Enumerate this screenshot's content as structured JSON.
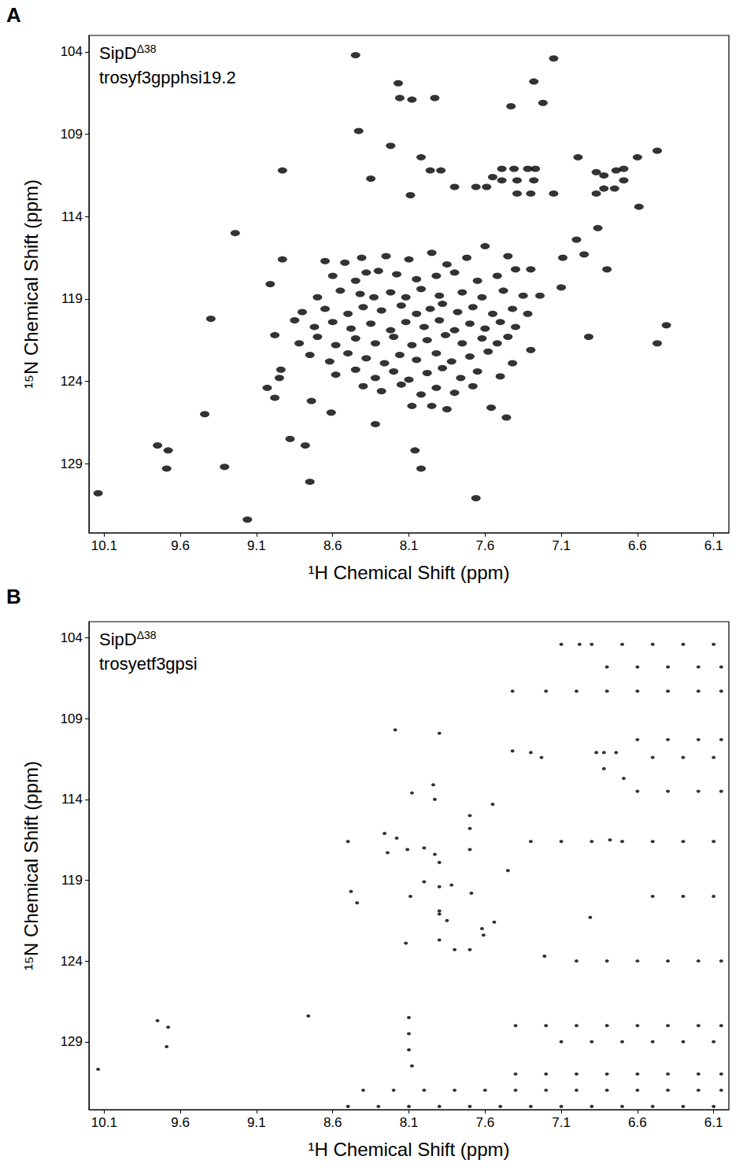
{
  "chart_data": [
    {
      "type": "scatter",
      "label": "A",
      "title": "SipDΔ38",
      "subtitle": "trosyf3gpphsi19.2",
      "xlabel": "¹H Chemical Shift (ppm)",
      "ylabel": "¹⁵N Chemical Shift (ppm)",
      "xlim": [
        10.2,
        6.0
      ],
      "xticks": [
        10.1,
        9.6,
        9.1,
        8.6,
        8.1,
        7.6,
        7.1,
        6.6,
        6.1
      ],
      "ylim": [
        103,
        133.2
      ],
      "yticks": [
        104,
        109,
        114,
        119,
        124,
        129
      ],
      "grid": false,
      "color": "#000000",
      "marker": "ellipse",
      "points": [
        [
          8.45,
          104.2
        ],
        [
          7.15,
          104.4
        ],
        [
          7.28,
          105.8
        ],
        [
          8.17,
          105.9
        ],
        [
          8.16,
          106.8
        ],
        [
          8.08,
          106.9
        ],
        [
          7.93,
          106.8
        ],
        [
          7.43,
          107.3
        ],
        [
          7.22,
          107.1
        ],
        [
          8.43,
          108.8
        ],
        [
          8.22,
          109.7
        ],
        [
          8.02,
          110.4
        ],
        [
          7.96,
          111.2
        ],
        [
          7.89,
          111.2
        ],
        [
          8.93,
          111.2
        ],
        [
          8.35,
          111.7
        ],
        [
          8.09,
          112.7
        ],
        [
          7.8,
          112.2
        ],
        [
          7.66,
          112.2
        ],
        [
          7.59,
          112.2
        ],
        [
          7.49,
          111.1
        ],
        [
          7.41,
          111.1
        ],
        [
          7.32,
          111.1
        ],
        [
          7.27,
          111.1
        ],
        [
          7.55,
          111.6
        ],
        [
          7.49,
          111.8
        ],
        [
          7.39,
          111.8
        ],
        [
          7.28,
          111.8
        ],
        [
          7.39,
          112.6
        ],
        [
          7.3,
          112.6
        ],
        [
          7.15,
          112.6
        ],
        [
          6.99,
          110.4
        ],
        [
          6.87,
          111.3
        ],
        [
          6.82,
          111.5
        ],
        [
          6.74,
          111.2
        ],
        [
          6.69,
          111.1
        ],
        [
          6.6,
          110.4
        ],
        [
          6.47,
          110.0
        ],
        [
          6.82,
          112.3
        ],
        [
          6.75,
          112.3
        ],
        [
          6.69,
          111.8
        ],
        [
          6.87,
          112.6
        ],
        [
          6.59,
          113.4
        ],
        [
          6.86,
          114.7
        ],
        [
          7.0,
          115.4
        ],
        [
          9.24,
          115.0
        ],
        [
          8.93,
          116.6
        ],
        [
          9.01,
          118.1
        ],
        [
          8.98,
          121.2
        ],
        [
          8.94,
          123.3
        ],
        [
          8.95,
          123.8
        ],
        [
          8.98,
          125.0
        ],
        [
          9.4,
          120.2
        ],
        [
          9.44,
          126.0
        ],
        [
          9.03,
          124.4
        ],
        [
          8.74,
          125.2
        ],
        [
          8.61,
          125.9
        ],
        [
          8.88,
          127.5
        ],
        [
          8.78,
          127.9
        ],
        [
          9.75,
          127.9
        ],
        [
          9.68,
          128.2
        ],
        [
          9.69,
          129.3
        ],
        [
          9.31,
          129.2
        ],
        [
          8.75,
          130.1
        ],
        [
          10.14,
          130.8
        ],
        [
          9.16,
          132.4
        ],
        [
          8.06,
          128.2
        ],
        [
          8.02,
          129.3
        ],
        [
          8.32,
          126.6
        ],
        [
          7.66,
          131.1
        ],
        [
          7.95,
          125.5
        ],
        [
          8.08,
          125.5
        ],
        [
          7.85,
          125.7
        ],
        [
          7.56,
          125.6
        ],
        [
          7.46,
          126.2
        ],
        [
          6.92,
          121.3
        ],
        [
          6.47,
          121.7
        ],
        [
          6.41,
          120.6
        ],
        [
          6.95,
          116.3
        ],
        [
          7.09,
          116.5
        ],
        [
          6.8,
          117.2
        ],
        [
          7.1,
          118.3
        ],
        [
          7.24,
          118.8
        ],
        [
          8.65,
          116.7
        ],
        [
          8.52,
          116.8
        ],
        [
          8.41,
          116.5
        ],
        [
          8.25,
          116.4
        ],
        [
          8.1,
          116.6
        ],
        [
          7.95,
          116.2
        ],
        [
          7.85,
          116.9
        ],
        [
          7.72,
          116.5
        ],
        [
          7.6,
          115.8
        ],
        [
          7.45,
          116.4
        ],
        [
          7.3,
          117.2
        ],
        [
          8.6,
          117.6
        ],
        [
          8.45,
          117.9
        ],
        [
          8.38,
          117.4
        ],
        [
          8.3,
          117.3
        ],
        [
          8.18,
          117.5
        ],
        [
          8.05,
          117.8
        ],
        [
          7.92,
          117.6
        ],
        [
          7.8,
          117.4
        ],
        [
          7.65,
          117.9
        ],
        [
          7.52,
          117.6
        ],
        [
          7.4,
          117.2
        ],
        [
          8.7,
          118.9
        ],
        [
          8.55,
          118.5
        ],
        [
          8.42,
          118.7
        ],
        [
          8.33,
          118.9
        ],
        [
          8.22,
          118.6
        ],
        [
          8.12,
          118.9
        ],
        [
          8.02,
          118.4
        ],
        [
          7.9,
          118.8
        ],
        [
          7.75,
          118.6
        ],
        [
          7.62,
          118.9
        ],
        [
          7.48,
          118.5
        ],
        [
          7.35,
          118.8
        ],
        [
          8.8,
          119.8
        ],
        [
          8.65,
          119.6
        ],
        [
          8.5,
          119.9
        ],
        [
          8.4,
          119.5
        ],
        [
          8.28,
          119.7
        ],
        [
          8.15,
          119.4
        ],
        [
          8.05,
          119.9
        ],
        [
          7.96,
          119.6
        ],
        [
          7.88,
          119.3
        ],
        [
          7.78,
          119.8
        ],
        [
          7.68,
          119.5
        ],
        [
          7.55,
          119.9
        ],
        [
          7.42,
          119.6
        ],
        [
          7.32,
          119.9
        ],
        [
          8.85,
          120.3
        ],
        [
          8.72,
          120.7
        ],
        [
          8.6,
          120.4
        ],
        [
          8.48,
          120.8
        ],
        [
          8.35,
          120.5
        ],
        [
          8.22,
          120.9
        ],
        [
          8.12,
          120.4
        ],
        [
          8.0,
          120.7
        ],
        [
          7.9,
          120.3
        ],
        [
          7.8,
          120.9
        ],
        [
          7.7,
          120.5
        ],
        [
          7.6,
          120.8
        ],
        [
          7.5,
          120.4
        ],
        [
          7.4,
          120.7
        ],
        [
          8.82,
          121.7
        ],
        [
          8.7,
          121.3
        ],
        [
          8.58,
          121.8
        ],
        [
          8.45,
          121.4
        ],
        [
          8.32,
          121.7
        ],
        [
          8.2,
          121.3
        ],
        [
          8.08,
          121.8
        ],
        [
          7.98,
          121.5
        ],
        [
          7.86,
          121.2
        ],
        [
          7.75,
          121.7
        ],
        [
          7.62,
          121.4
        ],
        [
          7.52,
          121.7
        ],
        [
          7.45,
          121.3
        ],
        [
          8.75,
          122.4
        ],
        [
          8.62,
          122.8
        ],
        [
          8.5,
          122.3
        ],
        [
          8.38,
          122.6
        ],
        [
          8.26,
          122.9
        ],
        [
          8.16,
          122.4
        ],
        [
          8.05,
          122.7
        ],
        [
          7.92,
          122.3
        ],
        [
          7.82,
          122.8
        ],
        [
          7.7,
          122.5
        ],
        [
          7.58,
          122.2
        ],
        [
          7.42,
          122.9
        ],
        [
          7.3,
          122.1
        ],
        [
          8.58,
          123.6
        ],
        [
          8.45,
          123.3
        ],
        [
          8.32,
          123.8
        ],
        [
          8.2,
          123.4
        ],
        [
          8.1,
          123.9
        ],
        [
          7.98,
          123.5
        ],
        [
          7.88,
          123.2
        ],
        [
          7.76,
          123.8
        ],
        [
          7.65,
          123.4
        ],
        [
          7.5,
          123.7
        ],
        [
          8.4,
          124.3
        ],
        [
          8.28,
          124.6
        ],
        [
          8.15,
          124.2
        ],
        [
          8.02,
          124.8
        ],
        [
          7.92,
          124.4
        ],
        [
          7.8,
          124.7
        ],
        [
          7.68,
          124.3
        ]
      ]
    },
    {
      "type": "scatter",
      "label": "B",
      "title": "SipDΔ38",
      "subtitle": "trosyetf3gpsi",
      "xlabel": "¹H Chemical Shift (ppm)",
      "ylabel": "¹⁵N Chemical Shift (ppm)",
      "xlim": [
        10.2,
        6.0
      ],
      "xticks": [
        10.1,
        9.6,
        9.1,
        8.6,
        8.1,
        7.6,
        7.1,
        6.6,
        6.1
      ],
      "ylim": [
        103,
        133.2
      ],
      "yticks": [
        104,
        109,
        114,
        119,
        124,
        129
      ],
      "grid": false,
      "color": "#000000",
      "marker": "dot",
      "points": [
        [
          6.98,
          104.4
        ],
        [
          7.42,
          107.3
        ],
        [
          8.19,
          109.7
        ],
        [
          7.9,
          109.9
        ],
        [
          7.42,
          111.0
        ],
        [
          7.3,
          111.1
        ],
        [
          7.23,
          111.4
        ],
        [
          6.87,
          111.1
        ],
        [
          6.82,
          111.1
        ],
        [
          6.74,
          111.1
        ],
        [
          6.82,
          112.1
        ],
        [
          6.69,
          112.7
        ],
        [
          7.7,
          115.0
        ],
        [
          7.7,
          115.8
        ],
        [
          7.55,
          114.3
        ],
        [
          8.5,
          116.6
        ],
        [
          8.24,
          117.3
        ],
        [
          8.11,
          117.1
        ],
        [
          8.0,
          117.0
        ],
        [
          7.93,
          117.4
        ],
        [
          7.9,
          117.9
        ],
        [
          8.26,
          116.1
        ],
        [
          8.18,
          116.4
        ],
        [
          7.7,
          117.1
        ],
        [
          7.45,
          118.4
        ],
        [
          7.69,
          119.8
        ],
        [
          8.0,
          119.1
        ],
        [
          7.9,
          119.4
        ],
        [
          7.82,
          119.3
        ],
        [
          8.09,
          120.0
        ],
        [
          7.9,
          120.9
        ],
        [
          7.9,
          121.1
        ],
        [
          7.85,
          121.5
        ],
        [
          7.62,
          122.0
        ],
        [
          7.54,
          121.6
        ],
        [
          7.61,
          122.4
        ],
        [
          7.9,
          122.7
        ],
        [
          7.8,
          123.3
        ],
        [
          7.7,
          123.3
        ],
        [
          8.12,
          122.9
        ],
        [
          7.21,
          123.7
        ],
        [
          6.91,
          121.3
        ],
        [
          6.78,
          116.5
        ],
        [
          9.75,
          127.7
        ],
        [
          9.68,
          128.1
        ],
        [
          9.69,
          129.3
        ],
        [
          8.76,
          127.4
        ],
        [
          10.14,
          130.7
        ],
        [
          8.48,
          119.7
        ],
        [
          8.44,
          120.4
        ],
        [
          8.08,
          113.6
        ],
        [
          7.94,
          113.1
        ],
        [
          7.93,
          114.0
        ],
        [
          7.1,
          104.4
        ],
        [
          6.9,
          104.4
        ],
        [
          6.7,
          104.4
        ],
        [
          6.5,
          104.4
        ],
        [
          6.3,
          104.4
        ],
        [
          6.1,
          104.4
        ],
        [
          6.8,
          105.8
        ],
        [
          6.6,
          105.8
        ],
        [
          6.4,
          105.8
        ],
        [
          6.2,
          105.8
        ],
        [
          6.05,
          105.8
        ],
        [
          7.2,
          107.3
        ],
        [
          7.0,
          107.3
        ],
        [
          6.8,
          107.3
        ],
        [
          6.6,
          107.3
        ],
        [
          6.4,
          107.3
        ],
        [
          6.2,
          107.3
        ],
        [
          6.05,
          107.3
        ],
        [
          6.6,
          110.3
        ],
        [
          6.4,
          110.3
        ],
        [
          6.2,
          110.3
        ],
        [
          6.05,
          110.3
        ],
        [
          6.5,
          111.4
        ],
        [
          6.3,
          111.4
        ],
        [
          6.1,
          111.4
        ],
        [
          6.6,
          113.5
        ],
        [
          6.4,
          113.5
        ],
        [
          6.2,
          113.5
        ],
        [
          6.05,
          113.5
        ],
        [
          7.3,
          116.6
        ],
        [
          7.1,
          116.6
        ],
        [
          6.9,
          116.6
        ],
        [
          6.7,
          116.6
        ],
        [
          6.5,
          116.6
        ],
        [
          6.3,
          116.6
        ],
        [
          6.1,
          116.6
        ],
        [
          6.5,
          120.0
        ],
        [
          6.3,
          120.0
        ],
        [
          6.1,
          120.0
        ],
        [
          7.0,
          124.0
        ],
        [
          6.8,
          124.0
        ],
        [
          6.6,
          124.0
        ],
        [
          6.4,
          124.0
        ],
        [
          6.2,
          124.0
        ],
        [
          6.05,
          124.0
        ],
        [
          7.4,
          128.0
        ],
        [
          7.2,
          128.0
        ],
        [
          7.0,
          128.0
        ],
        [
          6.8,
          128.0
        ],
        [
          6.6,
          128.0
        ],
        [
          6.4,
          128.0
        ],
        [
          6.2,
          128.0
        ],
        [
          6.05,
          128.0
        ],
        [
          7.1,
          129.0
        ],
        [
          6.9,
          129.0
        ],
        [
          6.7,
          129.0
        ],
        [
          6.5,
          129.0
        ],
        [
          6.3,
          129.0
        ],
        [
          6.1,
          129.0
        ],
        [
          7.4,
          131.0
        ],
        [
          7.2,
          131.0
        ],
        [
          7.0,
          131.0
        ],
        [
          6.8,
          131.0
        ],
        [
          6.6,
          131.0
        ],
        [
          6.4,
          131.0
        ],
        [
          6.2,
          131.0
        ],
        [
          6.05,
          131.0
        ],
        [
          8.4,
          132.0
        ],
        [
          8.2,
          132.0
        ],
        [
          8.0,
          132.0
        ],
        [
          7.8,
          132.0
        ],
        [
          7.6,
          132.0
        ],
        [
          7.4,
          132.0
        ],
        [
          7.2,
          132.0
        ],
        [
          7.0,
          132.0
        ],
        [
          6.8,
          132.0
        ],
        [
          6.6,
          132.0
        ],
        [
          6.4,
          132.0
        ],
        [
          6.2,
          132.0
        ],
        [
          6.05,
          132.0
        ],
        [
          8.5,
          133.0
        ],
        [
          8.3,
          133.0
        ],
        [
          8.1,
          133.0
        ],
        [
          7.9,
          133.0
        ],
        [
          7.7,
          133.0
        ],
        [
          7.5,
          133.0
        ],
        [
          7.3,
          133.0
        ],
        [
          7.1,
          133.0
        ],
        [
          6.9,
          133.0
        ],
        [
          6.7,
          133.0
        ],
        [
          6.5,
          133.0
        ],
        [
          6.3,
          133.0
        ],
        [
          6.1,
          133.0
        ],
        [
          8.1,
          127.5
        ],
        [
          8.1,
          128.5
        ],
        [
          8.1,
          129.5
        ],
        [
          8.08,
          130.5
        ]
      ]
    }
  ]
}
